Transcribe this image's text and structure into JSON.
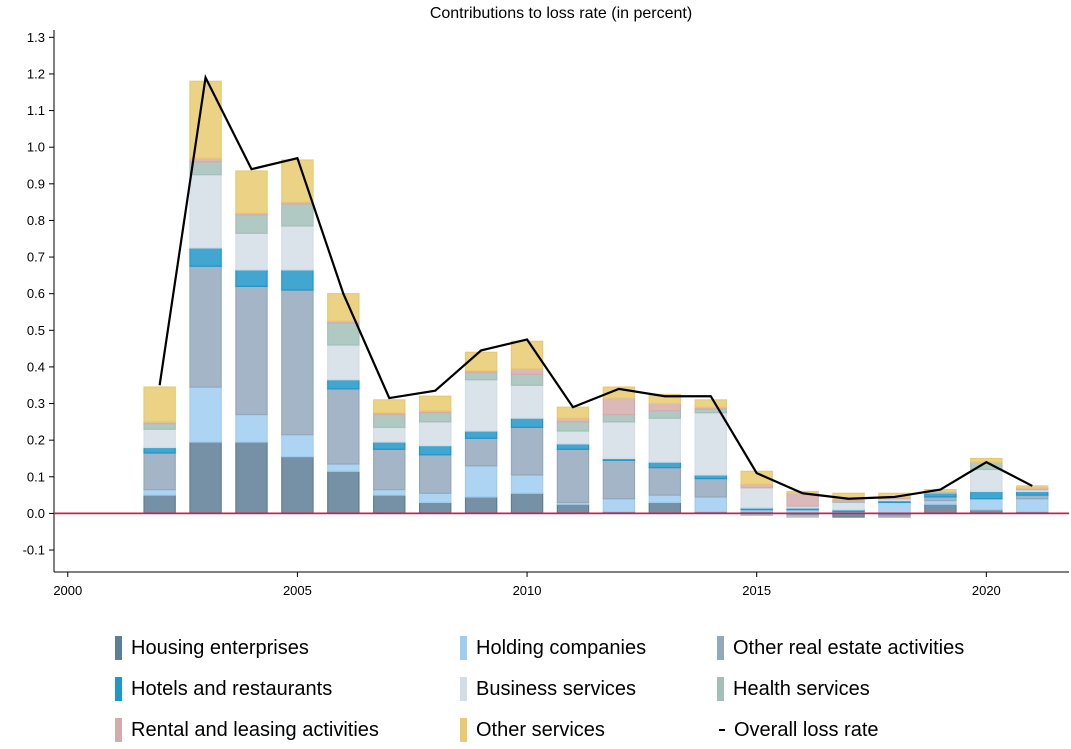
{
  "chart_data": {
    "type": "bar",
    "stacked": true,
    "title": "Contributions to loss rate (in percent)",
    "xlabel": "",
    "ylabel": "",
    "ylim": [
      -0.16,
      1.32
    ],
    "xlim": [
      1999.7,
      2021.8
    ],
    "x_ticks": [
      2000,
      2005,
      2010,
      2015,
      2020
    ],
    "y_ticks": [
      -0.1,
      0.0,
      0.1,
      0.2,
      0.3,
      0.4,
      0.5,
      0.6,
      0.7,
      0.8,
      0.9,
      1.0,
      1.1,
      1.2,
      1.3
    ],
    "y_tick_labels": [
      "-0.1",
      "0.0",
      "0.1",
      "0.2",
      "0.3",
      "0.4",
      "0.5",
      "0.6",
      "0.7",
      "0.8",
      "0.9",
      "1.0",
      "1.1",
      "1.2",
      "1.3"
    ],
    "x_tick_labels": [
      "2000",
      "2005",
      "2010",
      "2015",
      "2020"
    ],
    "zero_line_color": "#c0274d",
    "x": [
      2002,
      2003,
      2004,
      2005,
      2006,
      2007,
      2008,
      2009,
      2010,
      2011,
      2012,
      2013,
      2014,
      2015,
      2016,
      2017,
      2018,
      2019,
      2020,
      2021
    ],
    "series": [
      {
        "name": "Housing enterprises",
        "color": "#5e7e96",
        "values": [
          0.05,
          0.195,
          0.195,
          0.155,
          0.115,
          0.05,
          0.03,
          0.045,
          0.055,
          0.025,
          0.005,
          0.03,
          0.005,
          0.005,
          -0.005,
          -0.01,
          -0.005,
          0.025,
          0.01,
          0.005
        ]
      },
      {
        "name": "Holding companies",
        "color": "#9fcdf0",
        "values": [
          0.015,
          0.15,
          0.075,
          0.06,
          0.02,
          0.015,
          0.025,
          0.085,
          0.05,
          0.005,
          0.035,
          0.02,
          0.04,
          0.005,
          0.01,
          0.005,
          0.03,
          0.01,
          0.03,
          0.035
        ]
      },
      {
        "name": "Other real estate activities",
        "color": "#94a8bd",
        "values": [
          0.1,
          0.33,
          0.35,
          0.395,
          0.205,
          0.11,
          0.105,
          0.075,
          0.13,
          0.145,
          0.105,
          0.075,
          0.05,
          0.0,
          0.0,
          0.0,
          -0.005,
          0.01,
          0.0,
          0.01
        ]
      },
      {
        "name": "Hotels and restaurants",
        "color": "#2196c8",
        "values": [
          0.015,
          0.05,
          0.045,
          0.055,
          0.025,
          0.02,
          0.025,
          0.02,
          0.025,
          0.015,
          0.005,
          0.015,
          0.01,
          0.005,
          0.005,
          0.005,
          0.005,
          0.01,
          0.02,
          0.01
        ]
      },
      {
        "name": "Business services",
        "color": "#d3dde6",
        "values": [
          0.05,
          0.2,
          0.1,
          0.12,
          0.095,
          0.04,
          0.065,
          0.14,
          0.09,
          0.035,
          0.1,
          0.12,
          0.17,
          0.055,
          0.005,
          0.02,
          0.005,
          0.0,
          0.06,
          0.005
        ]
      },
      {
        "name": "Health services",
        "color": "#a3bfb8",
        "values": [
          0.015,
          0.035,
          0.05,
          0.06,
          0.06,
          0.035,
          0.025,
          0.02,
          0.03,
          0.025,
          0.02,
          0.02,
          0.01,
          -0.005,
          -0.005,
          0.005,
          0.0,
          0.005,
          0.02,
          0.0
        ]
      },
      {
        "name": "Rental and leasing activities",
        "color": "#d3adac",
        "values": [
          0.005,
          0.01,
          0.005,
          0.005,
          0.005,
          0.005,
          0.005,
          0.005,
          0.015,
          0.01,
          0.045,
          0.02,
          0.005,
          0.01,
          0.035,
          0.005,
          0.005,
          0.0,
          0.0,
          0.005
        ]
      },
      {
        "name": "Other services",
        "color": "#e9ca70",
        "values": [
          0.095,
          0.21,
          0.115,
          0.115,
          0.075,
          0.035,
          0.04,
          0.05,
          0.075,
          0.03,
          0.03,
          0.025,
          0.02,
          0.035,
          0.005,
          0.015,
          0.01,
          0.005,
          0.01,
          0.005
        ]
      }
    ],
    "line": {
      "name": "Overall loss rate",
      "color": "#000000",
      "values": [
        0.35,
        1.19,
        0.94,
        0.97,
        0.6,
        0.315,
        0.335,
        0.445,
        0.475,
        0.29,
        0.34,
        0.32,
        0.32,
        0.11,
        0.055,
        0.04,
        0.045,
        0.065,
        0.14,
        0.075
      ]
    },
    "legend_placement": "bottom",
    "grid": false
  }
}
